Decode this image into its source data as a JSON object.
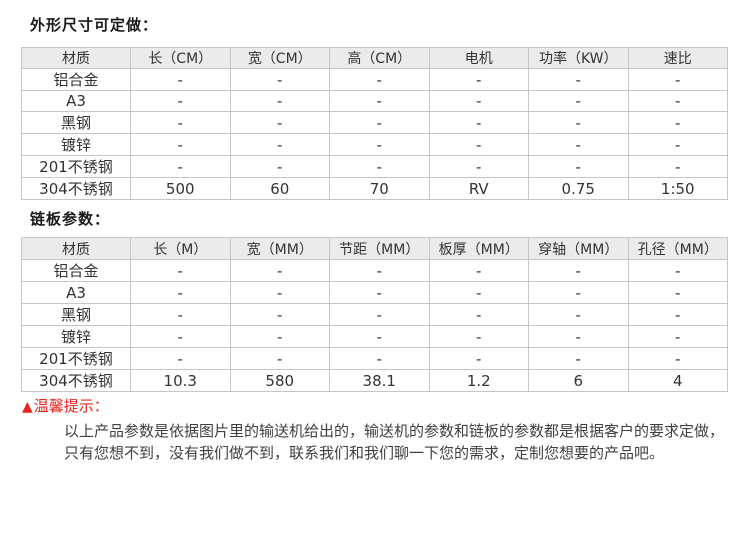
{
  "colors": {
    "header_bg": "#ebebeb",
    "table_border": "#c6c6c6",
    "text": "#333333",
    "accent_red": "#e8261f"
  },
  "sections": [
    {
      "title": "外形尺寸可定做：",
      "table": {
        "headers": [
          "材质",
          "长（CM）",
          "宽（CM）",
          "高（CM）",
          "电机",
          "功率（KW）",
          "速比"
        ],
        "rows": [
          [
            "铝合金",
            "-",
            "-",
            "-",
            "-",
            "-",
            "-"
          ],
          [
            "A3",
            "-",
            "-",
            "-",
            "-",
            "-",
            "-"
          ],
          [
            "黑钢",
            "-",
            "-",
            "-",
            "-",
            "-",
            "-"
          ],
          [
            "镀锌",
            "-",
            "-",
            "-",
            "-",
            "-",
            "-"
          ],
          [
            "201不锈钢",
            "-",
            "-",
            "-",
            "-",
            "-",
            "-"
          ],
          [
            "304不锈钢",
            "500",
            "60",
            "70",
            "RV",
            "0.75",
            "1:50"
          ]
        ]
      }
    },
    {
      "title": "链板参数：",
      "table": {
        "headers": [
          "材质",
          "长（M）",
          "宽（MM）",
          "节距（MM）",
          "板厚（MM）",
          "穿轴（MM）",
          "孔径（MM）"
        ],
        "rows": [
          [
            "铝合金",
            "-",
            "-",
            "-",
            "-",
            "-",
            "-"
          ],
          [
            "A3",
            "-",
            "-",
            "-",
            "-",
            "-",
            "-"
          ],
          [
            "黑钢",
            "-",
            "-",
            "-",
            "-",
            "-",
            "-"
          ],
          [
            "镀锌",
            "-",
            "-",
            "-",
            "-",
            "-",
            "-"
          ],
          [
            "201不锈钢",
            "-",
            "-",
            "-",
            "-",
            "-",
            "-"
          ],
          [
            "304不锈钢",
            "10.3",
            "580",
            "38.1",
            "1.2",
            "6",
            "4"
          ]
        ]
      }
    }
  ],
  "notice": {
    "icon": "▲",
    "title": "温馨提示：",
    "lines": [
      "以上产品参数是依据图片里的输送机给出的，输送机的参数和链板的参数都是根据客户的要求定做，",
      "只有您想不到，没有我们做不到，联系我们和我们聊一下您的需求，定制您想要的产品吧。"
    ]
  }
}
